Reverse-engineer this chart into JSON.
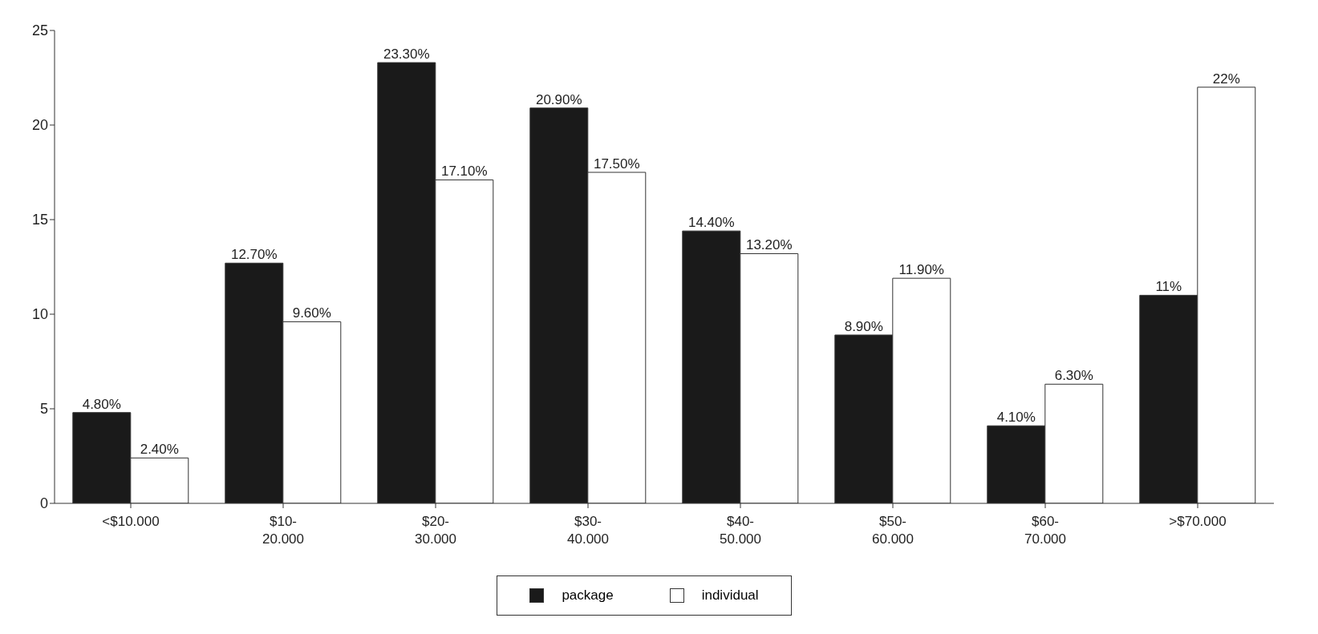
{
  "chart_data": {
    "type": "bar",
    "categories": [
      "<$10.000",
      "$10-20.000",
      "$20-30.000",
      "$30-40.000",
      "$40-50.000",
      "$50-60.000",
      "$60-70.000",
      ">$70.000"
    ],
    "series": [
      {
        "name": "package",
        "color": "#1a1a1a",
        "values": [
          4.8,
          12.7,
          23.3,
          20.9,
          14.4,
          8.9,
          4.1,
          11
        ],
        "value_labels": [
          "4.80%",
          "12.70%",
          "23.30%",
          "20.90%",
          "14.40%",
          "8.90%",
          "4.10%",
          "11%"
        ]
      },
      {
        "name": "individual",
        "color": "#ffffff",
        "values": [
          2.4,
          9.6,
          17.1,
          17.5,
          13.2,
          11.9,
          6.3,
          22
        ],
        "value_labels": [
          "2.40%",
          "9.60%",
          "17.10%",
          "17.50%",
          "13.20%",
          "11.90%",
          "6.30%",
          "22%"
        ]
      }
    ],
    "ylim": [
      0,
      25
    ],
    "yticks": [
      0,
      5,
      10,
      15,
      20,
      25
    ],
    "grid": false,
    "legend": "bottom"
  }
}
